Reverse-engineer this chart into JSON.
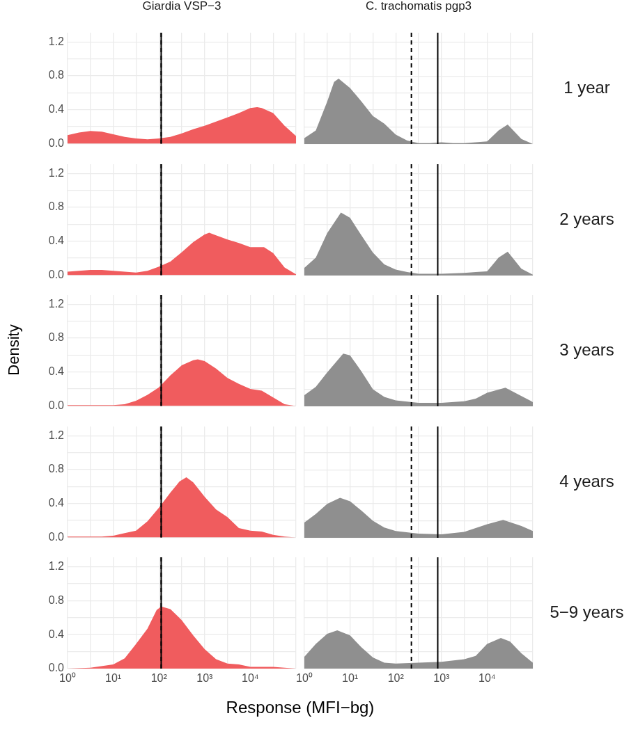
{
  "chart_data": [
    {
      "type": "area",
      "title": "Giardia VSP−3",
      "color": "#f05c5e",
      "log": "x",
      "grid": true,
      "tick_labels": "y",
      "xlim": [
        1,
        100000
      ],
      "ylim": [
        0,
        1.31
      ],
      "xticks": [
        1,
        3.16,
        10,
        31.6,
        100,
        316,
        1000,
        3160,
        10000,
        31600,
        100000
      ],
      "yticks": [
        {
          "value": 0,
          "label": "0.0"
        },
        {
          "value": 0.2,
          "label": null
        },
        0.4,
        {
          "value": 0.6,
          "label": null
        },
        0.8,
        {
          "value": 1.0,
          "label": null
        },
        1.2
      ],
      "ref_lines": [
        {
          "axis": "x",
          "value": 112,
          "color": "#000000",
          "line_style": "solid"
        },
        {
          "axis": "x",
          "value": 112,
          "color": "#000000",
          "line_style": "dashed"
        }
      ],
      "x": [
        1,
        1.78,
        3.16,
        5.62,
        10,
        17.8,
        31.6,
        56.2,
        100,
        178,
        316,
        562,
        1000,
        1778,
        3162,
        5623,
        10000,
        14125,
        17783,
        31623,
        56234,
        100000
      ],
      "values": [
        0.1,
        0.13,
        0.15,
        0.14,
        0.11,
        0.08,
        0.06,
        0.05,
        0.06,
        0.08,
        0.12,
        0.17,
        0.21,
        0.26,
        0.31,
        0.36,
        0.42,
        0.43,
        0.42,
        0.36,
        0.21,
        0.09
      ]
    },
    {
      "type": "area",
      "color": "#f05c5e",
      "log": "x",
      "grid": true,
      "tick_labels": "y",
      "xlim": [
        1,
        100000
      ],
      "ylim": [
        0,
        1.31
      ],
      "xticks": [
        1,
        3.16,
        10,
        31.6,
        100,
        316,
        1000,
        3160,
        10000,
        31600,
        100000
      ],
      "yticks": [
        {
          "value": 0,
          "label": "0.0"
        },
        {
          "value": 0.2,
          "label": null
        },
        0.4,
        {
          "value": 0.6,
          "label": null
        },
        0.8,
        {
          "value": 1.0,
          "label": null
        },
        1.2
      ],
      "ref_lines": [
        {
          "axis": "x",
          "value": 112,
          "color": "#000000",
          "line_style": "solid"
        },
        {
          "axis": "x",
          "value": 112,
          "color": "#000000",
          "line_style": "dashed"
        }
      ],
      "x": [
        1,
        3.16,
        5.62,
        10,
        31.6,
        56.2,
        100,
        178,
        316,
        562,
        1000,
        1259,
        1778,
        3162,
        5623,
        10000,
        19953,
        31623,
        56234,
        100000
      ],
      "values": [
        0.04,
        0.06,
        0.06,
        0.05,
        0.03,
        0.05,
        0.1,
        0.16,
        0.27,
        0.39,
        0.48,
        0.5,
        0.47,
        0.42,
        0.38,
        0.33,
        0.33,
        0.26,
        0.09,
        0.01
      ]
    },
    {
      "type": "area",
      "ylabel": "Density",
      "color": "#f05c5e",
      "log": "x",
      "grid": true,
      "tick_labels": "y",
      "xlim": [
        1,
        100000
      ],
      "ylim": [
        0,
        1.31
      ],
      "xticks": [
        1,
        3.16,
        10,
        31.6,
        100,
        316,
        1000,
        3160,
        10000,
        31600,
        100000
      ],
      "yticks": [
        {
          "value": 0,
          "label": "0.0"
        },
        {
          "value": 0.2,
          "label": null
        },
        0.4,
        {
          "value": 0.6,
          "label": null
        },
        0.8,
        {
          "value": 1.0,
          "label": null
        },
        1.2
      ],
      "ref_lines": [
        {
          "axis": "x",
          "value": 112,
          "color": "#000000",
          "line_style": "solid"
        },
        {
          "axis": "x",
          "value": 112,
          "color": "#000000",
          "line_style": "dashed"
        }
      ],
      "x": [
        1,
        3.16,
        10,
        17.8,
        31.6,
        56.2,
        100,
        178,
        316,
        562,
        708,
        1000,
        1778,
        3162,
        5623,
        10000,
        17783,
        31623,
        56234,
        100000
      ],
      "values": [
        0.01,
        0.01,
        0.01,
        0.02,
        0.06,
        0.13,
        0.22,
        0.36,
        0.48,
        0.54,
        0.55,
        0.53,
        0.44,
        0.33,
        0.26,
        0.2,
        0.18,
        0.1,
        0.02,
        0.0
      ]
    },
    {
      "type": "area",
      "color": "#f05c5e",
      "log": "x",
      "grid": true,
      "tick_labels": "y",
      "xlim": [
        1,
        100000
      ],
      "ylim": [
        0,
        1.31
      ],
      "xticks": [
        1,
        3.16,
        10,
        31.6,
        100,
        316,
        1000,
        3160,
        10000,
        31600,
        100000
      ],
      "yticks": [
        {
          "value": 0,
          "label": "0.0"
        },
        {
          "value": 0.2,
          "label": null
        },
        0.4,
        {
          "value": 0.6,
          "label": null
        },
        0.8,
        {
          "value": 1.0,
          "label": null
        },
        1.2
      ],
      "ref_lines": [
        {
          "axis": "x",
          "value": 112,
          "color": "#000000",
          "line_style": "solid"
        },
        {
          "axis": "x",
          "value": 112,
          "color": "#000000",
          "line_style": "dashed"
        }
      ],
      "x": [
        1,
        5.62,
        10,
        17.8,
        31.6,
        56.2,
        100,
        178,
        282,
        398,
        562,
        1000,
        1778,
        3162,
        5623,
        10000,
        17783,
        31623,
        56234,
        100000
      ],
      "values": [
        0.01,
        0.01,
        0.02,
        0.05,
        0.08,
        0.19,
        0.35,
        0.53,
        0.66,
        0.71,
        0.65,
        0.48,
        0.33,
        0.24,
        0.11,
        0.08,
        0.07,
        0.03,
        0.01,
        0
      ]
    },
    {
      "type": "area",
      "xlabel": "Response (MFI−bg)",
      "color": "#f05c5e",
      "log": "x",
      "grid": true,
      "xlim": [
        1,
        100000
      ],
      "ylim": [
        0,
        1.31
      ],
      "xticks": [
        {
          "value": 1,
          "label": "10⁰"
        },
        {
          "value": 3.16,
          "label": null
        },
        {
          "value": 10,
          "label": "10¹"
        },
        {
          "value": 31.6,
          "label": null
        },
        {
          "value": 100,
          "label": "10²"
        },
        {
          "value": 316,
          "label": null
        },
        {
          "value": 1000,
          "label": "10³"
        },
        {
          "value": 3160,
          "label": null
        },
        {
          "value": 10000,
          "label": "10⁴"
        },
        {
          "value": 31600,
          "label": null
        },
        {
          "value": 100000,
          "label": null
        }
      ],
      "yticks": [
        {
          "value": 0,
          "label": "0.0"
        },
        {
          "value": 0.2,
          "label": null
        },
        0.4,
        {
          "value": 0.6,
          "label": null
        },
        0.8,
        {
          "value": 1.0,
          "label": null
        },
        1.2
      ],
      "ref_lines": [
        {
          "axis": "x",
          "value": 112,
          "color": "#000000",
          "line_style": "solid"
        },
        {
          "axis": "x",
          "value": 112,
          "color": "#000000",
          "line_style": "dashed"
        }
      ],
      "x": [
        1,
        3.16,
        10,
        17.8,
        31.6,
        56.2,
        89.1,
        112,
        178,
        316,
        562,
        1000,
        1778,
        3162,
        5623,
        10000,
        31623,
        100000
      ],
      "values": [
        0,
        0.01,
        0.05,
        0.12,
        0.29,
        0.47,
        0.69,
        0.73,
        0.7,
        0.57,
        0.39,
        0.23,
        0.11,
        0.06,
        0.05,
        0.02,
        0.02,
        0
      ]
    },
    {
      "type": "area",
      "title": "C. trachomatis pgp3",
      "y2label": "1 year",
      "color": "#8f8f8f",
      "log": "x",
      "grid": true,
      "tick_labels": false,
      "xlim": [
        1,
        100000
      ],
      "ylim": [
        0,
        1.31
      ],
      "xticks": [
        1,
        3.16,
        10,
        31.6,
        100,
        316,
        1000,
        3160,
        10000,
        31600,
        100000
      ],
      "yticks": [
        0,
        0.2,
        0.4,
        0.6,
        0.8,
        1.0,
        1.2
      ],
      "ref_lines": [
        {
          "axis": "x",
          "value": 220,
          "color": "#000000",
          "line_style": "dashed"
        },
        {
          "axis": "x",
          "value": 830,
          "color": "#000000",
          "line_style": "solid"
        }
      ],
      "x": [
        1,
        1.78,
        3.16,
        4.47,
        5.62,
        10,
        17.8,
        31.6,
        56.2,
        100,
        178,
        316,
        562,
        1000,
        1778,
        3162,
        5623,
        10000,
        17783,
        28184,
        56234,
        100000
      ],
      "values": [
        0.07,
        0.16,
        0.5,
        0.73,
        0.77,
        0.66,
        0.5,
        0.33,
        0.24,
        0.11,
        0.04,
        0.01,
        0.01,
        0.02,
        0.01,
        0.01,
        0.02,
        0.03,
        0.16,
        0.23,
        0.06,
        0
      ]
    },
    {
      "type": "area",
      "y2label": "2 years",
      "color": "#8f8f8f",
      "log": "x",
      "grid": true,
      "tick_labels": false,
      "xlim": [
        1,
        100000
      ],
      "ylim": [
        0,
        1.31
      ],
      "xticks": [
        1,
        3.16,
        10,
        31.6,
        100,
        316,
        1000,
        3160,
        10000,
        31600,
        100000
      ],
      "yticks": [
        0,
        0.2,
        0.4,
        0.6,
        0.8,
        1.0,
        1.2
      ],
      "ref_lines": [
        {
          "axis": "x",
          "value": 220,
          "color": "#000000",
          "line_style": "dashed"
        },
        {
          "axis": "x",
          "value": 830,
          "color": "#000000",
          "line_style": "solid"
        }
      ],
      "x": [
        1,
        1.78,
        3.16,
        6.31,
        10,
        17.8,
        31.6,
        56.2,
        100,
        178,
        316,
        1000,
        3162,
        5623,
        10000,
        17783,
        28184,
        56234,
        100000
      ],
      "values": [
        0.09,
        0.21,
        0.5,
        0.74,
        0.68,
        0.47,
        0.27,
        0.13,
        0.07,
        0.04,
        0.02,
        0.02,
        0.03,
        0.04,
        0.05,
        0.21,
        0.28,
        0.08,
        0.01
      ]
    },
    {
      "type": "area",
      "y2label": "3 years",
      "color": "#8f8f8f",
      "log": "x",
      "grid": true,
      "tick_labels": false,
      "xlim": [
        1,
        100000
      ],
      "ylim": [
        0,
        1.31
      ],
      "xticks": [
        1,
        3.16,
        10,
        31.6,
        100,
        316,
        1000,
        3160,
        10000,
        31600,
        100000
      ],
      "yticks": [
        0,
        0.2,
        0.4,
        0.6,
        0.8,
        1.0,
        1.2
      ],
      "ref_lines": [
        {
          "axis": "x",
          "value": 220,
          "color": "#000000",
          "line_style": "dashed"
        },
        {
          "axis": "x",
          "value": 830,
          "color": "#000000",
          "line_style": "solid"
        }
      ],
      "x": [
        1,
        1.78,
        3.16,
        7.08,
        10,
        17.8,
        31.6,
        56.2,
        100,
        316,
        1000,
        3162,
        5623,
        10000,
        25119,
        56234,
        100000
      ],
      "values": [
        0.13,
        0.23,
        0.4,
        0.62,
        0.6,
        0.41,
        0.2,
        0.11,
        0.07,
        0.04,
        0.04,
        0.06,
        0.09,
        0.16,
        0.22,
        0.12,
        0.05
      ]
    },
    {
      "type": "area",
      "y2label": "4 years",
      "color": "#8f8f8f",
      "log": "x",
      "grid": true,
      "tick_labels": false,
      "xlim": [
        1,
        100000
      ],
      "ylim": [
        0,
        1.31
      ],
      "xticks": [
        1,
        3.16,
        10,
        31.6,
        100,
        316,
        1000,
        3160,
        10000,
        31600,
        100000
      ],
      "yticks": [
        0,
        0.2,
        0.4,
        0.6,
        0.8,
        1.0,
        1.2
      ],
      "ref_lines": [
        {
          "axis": "x",
          "value": 220,
          "color": "#000000",
          "line_style": "dashed"
        },
        {
          "axis": "x",
          "value": 830,
          "color": "#000000",
          "line_style": "solid"
        }
      ],
      "x": [
        1,
        1.78,
        3.16,
        6.03,
        10,
        17.8,
        31.6,
        56.2,
        100,
        316,
        1000,
        3162,
        10000,
        22387,
        56234,
        100000
      ],
      "values": [
        0.18,
        0.28,
        0.4,
        0.47,
        0.43,
        0.32,
        0.2,
        0.12,
        0.08,
        0.05,
        0.04,
        0.07,
        0.16,
        0.21,
        0.14,
        0.08
      ]
    },
    {
      "type": "area",
      "y2label": "5−9 years",
      "color": "#8f8f8f",
      "log": "x",
      "grid": true,
      "tick_labels": "x",
      "xlim": [
        1,
        100000
      ],
      "ylim": [
        0,
        1.31
      ],
      "xticks": [
        {
          "value": 1,
          "label": "10⁰"
        },
        {
          "value": 3.16,
          "label": null
        },
        {
          "value": 10,
          "label": "10¹"
        },
        {
          "value": 31.6,
          "label": null
        },
        {
          "value": 100,
          "label": "10²"
        },
        {
          "value": 316,
          "label": null
        },
        {
          "value": 1000,
          "label": "10³"
        },
        {
          "value": 3160,
          "label": null
        },
        {
          "value": 10000,
          "label": "10⁴"
        },
        {
          "value": 31600,
          "label": null
        },
        {
          "value": 100000,
          "label": null
        }
      ],
      "yticks": [
        0,
        0.2,
        0.4,
        0.6,
        0.8,
        1.0,
        1.2
      ],
      "ref_lines": [
        {
          "axis": "x",
          "value": 220,
          "color": "#000000",
          "line_style": "dashed"
        },
        {
          "axis": "x",
          "value": 830,
          "color": "#000000",
          "line_style": "solid"
        }
      ],
      "x": [
        1,
        1.78,
        3.16,
        5.25,
        10,
        17.8,
        31.6,
        56.2,
        100,
        316,
        1000,
        3162,
        5623,
        10000,
        19953,
        31623,
        56234,
        100000
      ],
      "values": [
        0.14,
        0.29,
        0.41,
        0.45,
        0.39,
        0.25,
        0.13,
        0.07,
        0.06,
        0.07,
        0.08,
        0.11,
        0.15,
        0.29,
        0.36,
        0.32,
        0.18,
        0.07
      ]
    }
  ]
}
